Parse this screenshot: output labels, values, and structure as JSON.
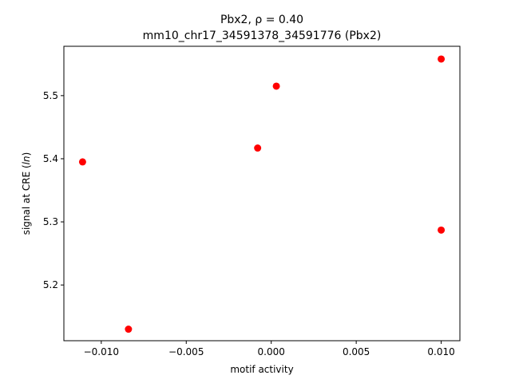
{
  "chart_data": {
    "type": "scatter",
    "title_line1": "Pbx2, ρ = 0.40",
    "title_line2": "mm10_chr17_34591378_34591776 (Pbx2)",
    "xlabel": "motif activity",
    "ylabel_prefix": "signal at CRE (",
    "ylabel_italic": "ln",
    "ylabel_suffix": ")",
    "xlim": [
      -0.0122,
      0.0111
    ],
    "ylim": [
      5.1117,
      5.5782
    ],
    "xticks": [
      {
        "value": -0.01,
        "label": "−0.010"
      },
      {
        "value": -0.005,
        "label": "−0.005"
      },
      {
        "value": 0.0,
        "label": "0.000"
      },
      {
        "value": 0.005,
        "label": "0.005"
      },
      {
        "value": 0.01,
        "label": "0.010"
      }
    ],
    "yticks": [
      {
        "value": 5.2,
        "label": "5.2"
      },
      {
        "value": 5.3,
        "label": "5.3"
      },
      {
        "value": 5.4,
        "label": "5.4"
      },
      {
        "value": 5.5,
        "label": "5.5"
      }
    ],
    "points": [
      {
        "x": -0.0111,
        "y": 5.395
      },
      {
        "x": -0.0084,
        "y": 5.13
      },
      {
        "x": -0.0008,
        "y": 5.417
      },
      {
        "x": 0.0003,
        "y": 5.515
      },
      {
        "x": 0.01,
        "y": 5.558
      },
      {
        "x": 0.01,
        "y": 5.287
      }
    ],
    "marker_color": "#ff0000",
    "grid": false,
    "legend": "none"
  }
}
